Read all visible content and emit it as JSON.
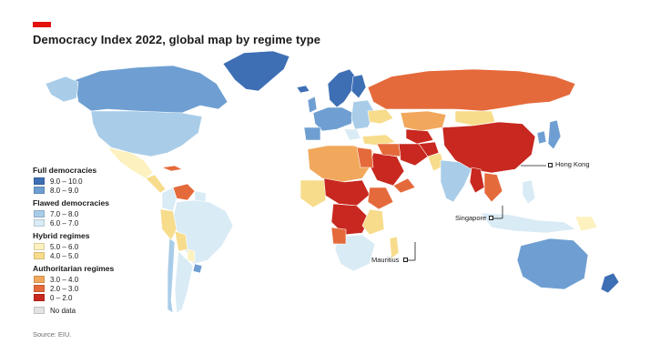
{
  "header": {
    "title": "Democracy Index 2022, global map by regime type",
    "brand_color": "#e3120b"
  },
  "legend": {
    "groups": [
      {
        "heading": "Full democracies",
        "items": [
          {
            "label": "9.0 – 10.0",
            "color": "#3e6fb5"
          },
          {
            "label": "8.0 – 9.0",
            "color": "#6f9fd2"
          }
        ]
      },
      {
        "heading": "Flawed democracies",
        "items": [
          {
            "label": "7.0 – 8.0",
            "color": "#a9cde8"
          },
          {
            "label": "6.0 – 7.0",
            "color": "#d9ebf5"
          }
        ]
      },
      {
        "heading": "Hybrid regimes",
        "items": [
          {
            "label": "5.0 – 6.0",
            "color": "#fdf1bf"
          },
          {
            "label": "4.0 – 5.0",
            "color": "#f7dc8c"
          }
        ]
      },
      {
        "heading": "Authoritarian regimes",
        "items": [
          {
            "label": "3.0 – 4.0",
            "color": "#f1a85c"
          },
          {
            "label": "2.0 – 3.0",
            "color": "#e56a3b"
          },
          {
            "label": "0 – 2.0",
            "color": "#c8281f"
          }
        ]
      }
    ],
    "no_data": {
      "label": "No data",
      "color": "#e3e3e3"
    }
  },
  "callouts": {
    "hong_kong": "Hong Kong",
    "singapore": "Singapore",
    "mauritius": "Mauritius"
  },
  "source": "Source: EIU."
}
